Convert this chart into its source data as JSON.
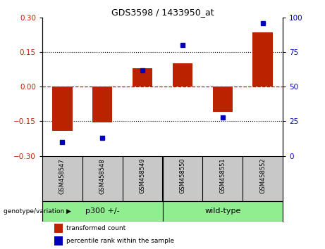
{
  "title": "GDS3598 / 1433950_at",
  "samples": [
    "GSM458547",
    "GSM458548",
    "GSM458549",
    "GSM458550",
    "GSM458551",
    "GSM458552"
  ],
  "red_bars": [
    -0.19,
    -0.155,
    0.08,
    0.1,
    -0.11,
    0.235
  ],
  "blue_dots_pct": [
    10,
    13,
    62,
    80,
    28,
    96
  ],
  "ylim": [
    -0.3,
    0.3
  ],
  "right_ylim": [
    0,
    100
  ],
  "yticks_left": [
    -0.3,
    -0.15,
    0,
    0.15,
    0.3
  ],
  "yticks_right": [
    0,
    25,
    50,
    75,
    100
  ],
  "bar_color": "#BB2200",
  "dot_color": "#0000BB",
  "zero_line_color": "#CC0000",
  "label_bg": "#C8C8C8",
  "green_color": "#90EE90",
  "legend_red_label": "transformed count",
  "legend_blue_label": "percentile rank within the sample",
  "genotype_label": "genotype/variation",
  "bar_width": 0.5,
  "group1_label": "p300 +/-",
  "group2_label": "wild-type"
}
